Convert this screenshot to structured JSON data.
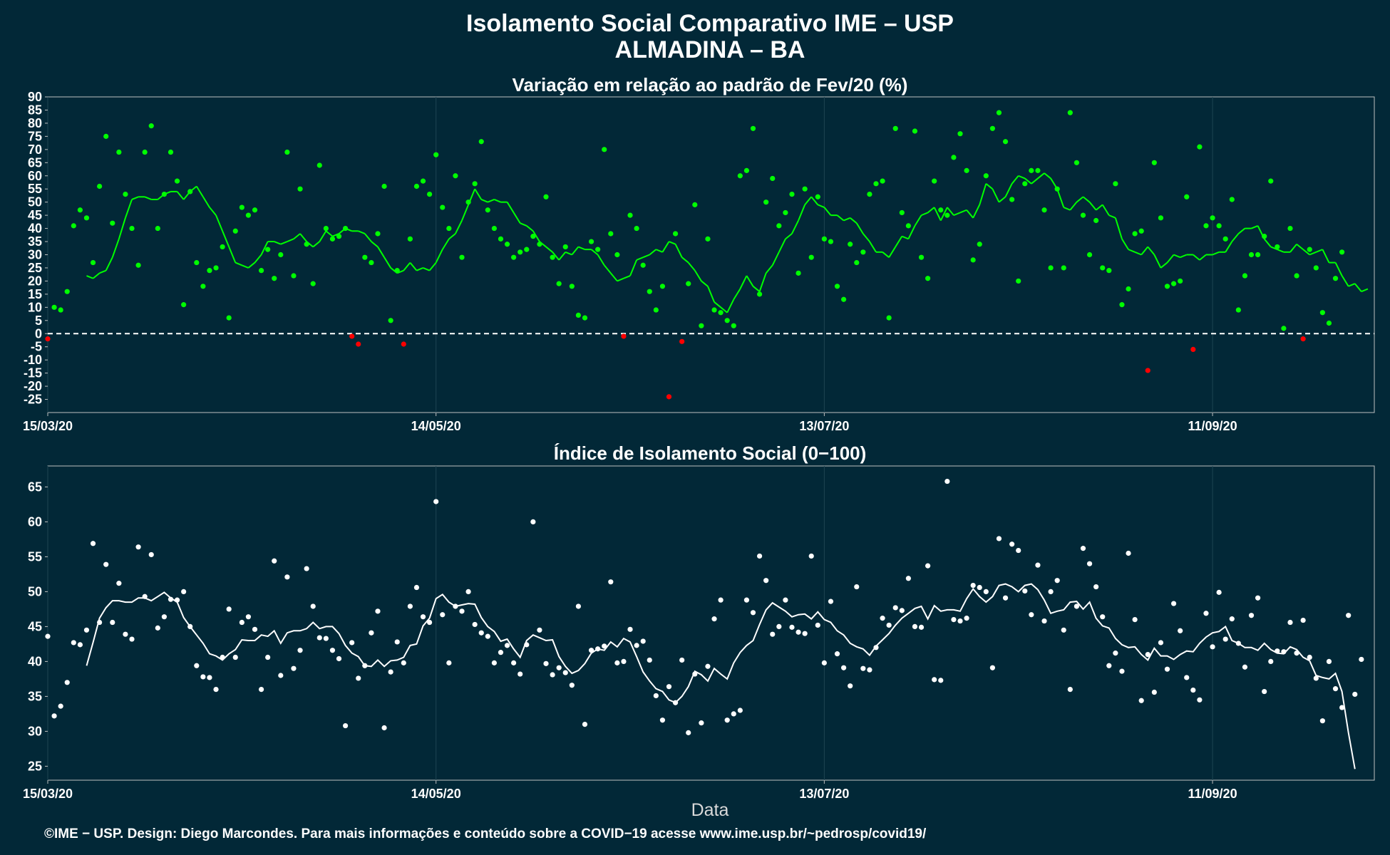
{
  "chart_data": [
    {
      "type": "scatter",
      "title": "Isolamento Social Comparativo IME – USP",
      "subtitle": "ALMADINA – BA",
      "panel_title": "Variação em relação ao padrão de Fev/20 (%)",
      "x_start": "2020-03-15",
      "x_end": "2020-10-06",
      "x_ticks": [
        "15/03/20",
        "14/05/20",
        "13/07/20",
        "11/09/20"
      ],
      "ylim": [
        -30,
        90
      ],
      "y_ticks": [
        -25,
        -20,
        -15,
        -10,
        -5,
        0,
        5,
        10,
        15,
        20,
        25,
        30,
        35,
        40,
        45,
        50,
        55,
        60,
        65,
        70,
        75,
        80,
        85,
        90
      ],
      "reference_line": 0,
      "colors": {
        "positive": "#00ff00",
        "negative": "#ff0000",
        "background": "#022837",
        "reference": "#ffffff"
      },
      "series": [
        {
          "role": "daily_points",
          "values": [
            -2,
            10,
            9,
            16,
            41,
            47,
            44,
            27,
            56,
            75,
            42,
            69,
            53,
            40,
            26,
            69,
            79,
            40,
            53,
            69,
            58,
            11,
            54,
            27,
            18,
            24,
            25,
            33,
            6,
            39,
            48,
            45,
            47,
            24,
            32,
            21,
            30,
            69,
            22,
            55,
            34,
            19,
            64,
            40,
            36,
            37,
            40,
            -1,
            -4,
            29,
            27,
            38,
            56,
            5,
            24,
            -4,
            36,
            56,
            58,
            53,
            68,
            48,
            40,
            60,
            29,
            50,
            57,
            73,
            47,
            40,
            36,
            34,
            29,
            31,
            32,
            37,
            34,
            52,
            29,
            19,
            33,
            18,
            7,
            6,
            35,
            32,
            70,
            38,
            30,
            -1,
            45,
            40,
            26,
            16,
            9,
            18,
            -24,
            38,
            -3,
            19,
            49,
            3,
            36,
            9,
            8,
            5,
            3,
            60,
            62,
            78,
            15,
            50,
            59,
            41,
            46,
            53,
            23,
            55,
            29,
            52,
            36,
            35,
            18,
            13,
            34,
            27,
            31,
            53,
            57,
            58,
            6,
            78,
            46,
            41,
            77,
            29,
            21,
            58,
            47,
            45,
            67,
            76,
            62,
            28,
            34,
            60,
            78,
            84,
            73,
            51,
            20,
            57,
            62,
            62,
            47,
            25,
            55,
            25,
            84,
            65,
            45,
            30,
            43,
            25,
            24,
            57,
            11,
            17,
            38,
            39,
            -14,
            65,
            44,
            18,
            19,
            20,
            52,
            -6,
            71,
            41,
            44,
            41,
            36,
            51,
            9,
            22,
            30,
            30,
            37,
            58,
            33,
            2,
            40,
            22,
            -2,
            32,
            25,
            8,
            4,
            21,
            31
          ],
          "note": "values in % change; negative days plotted red"
        },
        {
          "role": "moving_average",
          "values": [
            null,
            null,
            null,
            null,
            null,
            null,
            22,
            21,
            23,
            24,
            29,
            36,
            44,
            51,
            52,
            52,
            51,
            51,
            53,
            54,
            54,
            51,
            54,
            56,
            52,
            48,
            45,
            39,
            33,
            27,
            26,
            25,
            27,
            30,
            35,
            35,
            34,
            35,
            36,
            38,
            35,
            33,
            35,
            39,
            37,
            38,
            40,
            39,
            39,
            38,
            35,
            33,
            29,
            25,
            23,
            24,
            27,
            24,
            25,
            24,
            27,
            32,
            36,
            38,
            43,
            49,
            55,
            51,
            50,
            51,
            50,
            50,
            46,
            42,
            41,
            39,
            35,
            33,
            31,
            28,
            31,
            30,
            33,
            32,
            32,
            30,
            26,
            23,
            20,
            21,
            22,
            28,
            29,
            30,
            32,
            31,
            35,
            34,
            29,
            27,
            24,
            20,
            18,
            12,
            10,
            8,
            13,
            17,
            22,
            18,
            16,
            23,
            26,
            31,
            36,
            38,
            43,
            49,
            52,
            49,
            48,
            45,
            45,
            43,
            44,
            42,
            38,
            35,
            31,
            31,
            29,
            33,
            37,
            36,
            41,
            45,
            46,
            48,
            43,
            48,
            45,
            46,
            47,
            44,
            49,
            57,
            55,
            50,
            52,
            57,
            60,
            59,
            57,
            59,
            61,
            59,
            55,
            48,
            47,
            50,
            52,
            50,
            47,
            49,
            45,
            44,
            36,
            32,
            31,
            30,
            33,
            30,
            25,
            27,
            30,
            29,
            30,
            30,
            28,
            30,
            30,
            31,
            31,
            35,
            38,
            40,
            40,
            41,
            36,
            33,
            32,
            31,
            31,
            34,
            32,
            30,
            31,
            32,
            27,
            27,
            22,
            18,
            19,
            16,
            17
          ]
        }
      ]
    },
    {
      "type": "scatter",
      "panel_title": "Índice de Isolamento Social (0−100)",
      "xlabel": "Data",
      "x_start": "2020-03-15",
      "x_end": "2020-10-06",
      "x_ticks": [
        "15/03/20",
        "14/05/20",
        "13/07/20",
        "11/09/20"
      ],
      "ylim": [
        23,
        68
      ],
      "y_ticks": [
        25,
        30,
        35,
        40,
        45,
        50,
        55,
        60,
        65
      ],
      "colors": {
        "points": "#ffffff",
        "line": "#ffffff"
      },
      "series": [
        {
          "role": "daily_points",
          "values": [
            43.6,
            32.2,
            33.6,
            37.0,
            42.7,
            42.4,
            44.5,
            56.9,
            45.6,
            53.9,
            45.6,
            51.2,
            43.9,
            43.2,
            56.4,
            49.3,
            55.3,
            44.8,
            46.4,
            48.9,
            48.8,
            50.0,
            45.0,
            39.4,
            37.8,
            37.7,
            36.0,
            40.6,
            47.5,
            40.6,
            45.6,
            46.4,
            44.6,
            36.0,
            40.6,
            54.4,
            38.0,
            52.1,
            39.0,
            41.6,
            53.3,
            47.9,
            43.4,
            43.3,
            41.6,
            40.4,
            30.8,
            42.7,
            37.6,
            39.4,
            44.1,
            47.2,
            30.5,
            38.5,
            42.8,
            39.8,
            47.9,
            50.6,
            46.4,
            45.6,
            62.9,
            46.7,
            39.8,
            47.9,
            47.2,
            50.0,
            45.3,
            44.1,
            43.6,
            39.8,
            41.3,
            42.3,
            39.8,
            38.2,
            42.4,
            60.0,
            44.5,
            39.7,
            38.1,
            39.1,
            38.4,
            36.6,
            47.9,
            31.0,
            41.6,
            41.8,
            42.2,
            51.4,
            39.8,
            40.0,
            44.6,
            42.3,
            42.9,
            40.2,
            35.1,
            31.6,
            36.4,
            34.1,
            40.2,
            29.8,
            38.2,
            31.2,
            39.3,
            46.1,
            48.8,
            31.6,
            32.5,
            33.0,
            48.8,
            47.0,
            55.1,
            51.6,
            43.9,
            45.0,
            48.8,
            44.9,
            44.2,
            44.0,
            55.1,
            45.2,
            39.8,
            48.6,
            41.1,
            39.1,
            36.5,
            50.7,
            39.0,
            38.8,
            42.0,
            46.2,
            45.2,
            47.7,
            47.3,
            51.9,
            45.0,
            44.9,
            53.7,
            37.4,
            37.3,
            65.8,
            46.0,
            45.8,
            46.2,
            50.9,
            50.6,
            50.0,
            39.1,
            57.6,
            49.1,
            56.8,
            55.9,
            50.1,
            46.7,
            53.8,
            45.8,
            50.0,
            51.6,
            44.5,
            36.0,
            47.9,
            56.2,
            54.0,
            50.7,
            46.4,
            39.4,
            41.2,
            38.6,
            55.5,
            46.0,
            34.4,
            41.0,
            35.6,
            42.7,
            38.9,
            48.3,
            44.4,
            37.7,
            35.9,
            34.5,
            46.9,
            42.1,
            49.9,
            43.2,
            46.1,
            42.6,
            39.2,
            46.6,
            49.1,
            35.7,
            40.0,
            41.5,
            41.4,
            45.6,
            41.2,
            45.9,
            40.6,
            37.6,
            31.5,
            40.0,
            36.1,
            33.4,
            46.6,
            35.3,
            40.3
          ]
        },
        {
          "role": "moving_average",
          "values": [
            null,
            null,
            null,
            null,
            null,
            null,
            39.4,
            42.7,
            46.2,
            47.7,
            48.7,
            48.7,
            48.5,
            48.5,
            49.1,
            49.1,
            48.7,
            49.3,
            49.9,
            49.1,
            48.5,
            46.3,
            45.0,
            43.8,
            42.6,
            41.1,
            40.8,
            40.2,
            41.1,
            41.7,
            43.1,
            43.0,
            43.0,
            43.8,
            43.6,
            44.4,
            42.6,
            44.1,
            44.4,
            44.4,
            44.7,
            45.6,
            44.7,
            45.0,
            45.0,
            44.0,
            42.3,
            41.2,
            40.7,
            39.4,
            39.3,
            40.2,
            39.3,
            40.1,
            40.2,
            40.6,
            42.3,
            42.5,
            45.1,
            46.2,
            49.0,
            49.6,
            48.5,
            47.9,
            48.1,
            48.3,
            48.2,
            46.3,
            45.0,
            44.3,
            42.9,
            43.2,
            41.8,
            40.6,
            43.0,
            43.8,
            43.4,
            43.0,
            43.1,
            40.7,
            39.3,
            38.3,
            38.7,
            39.7,
            41.2,
            41.8,
            41.6,
            42.8,
            42.1,
            43.3,
            42.8,
            40.7,
            38.5,
            37.2,
            36.1,
            35.7,
            34.5,
            34.1,
            35.0,
            36.4,
            38.6,
            38.1,
            37.2,
            39.0,
            38.2,
            37.5,
            39.8,
            41.3,
            42.3,
            43.0,
            45.3,
            47.4,
            48.4,
            47.8,
            47.2,
            46.4,
            46.7,
            46.8,
            46.1,
            47.1,
            46.0,
            45.6,
            44.4,
            43.8,
            42.6,
            42.1,
            41.8,
            40.9,
            42.2,
            43.1,
            44.0,
            45.2,
            46.2,
            46.9,
            47.6,
            47.9,
            46.1,
            48.0,
            47.2,
            47.4,
            47.4,
            47.2,
            49.0,
            50.4,
            49.3,
            48.5,
            49.3,
            50.9,
            51.1,
            50.7,
            50.0,
            50.9,
            51.1,
            50.3,
            48.8,
            46.9,
            47.2,
            47.4,
            48.5,
            48.6,
            47.5,
            48.5,
            46.2,
            45.1,
            44.8,
            43.3,
            42.4,
            42.0,
            42.1,
            41.0,
            40.2,
            41.9,
            40.8,
            40.8,
            40.3,
            41.0,
            41.5,
            41.4,
            42.6,
            43.5,
            44.1,
            44.3,
            45.0,
            43.0,
            42.6,
            42.0,
            42.0,
            41.6,
            42.6,
            41.7,
            41.2,
            41.1,
            42.1,
            41.7,
            40.6,
            40.1,
            38.0,
            37.7,
            37.5,
            38.3,
            35.7,
            29.8,
            24.6
          ]
        }
      ]
    }
  ],
  "caption": "©IME − USP. Design: Diego Marcondes. Para mais informações e conteúdo sobre a COVID−19 acesse www.ime.usp.br/~pedrosp/covid19/"
}
